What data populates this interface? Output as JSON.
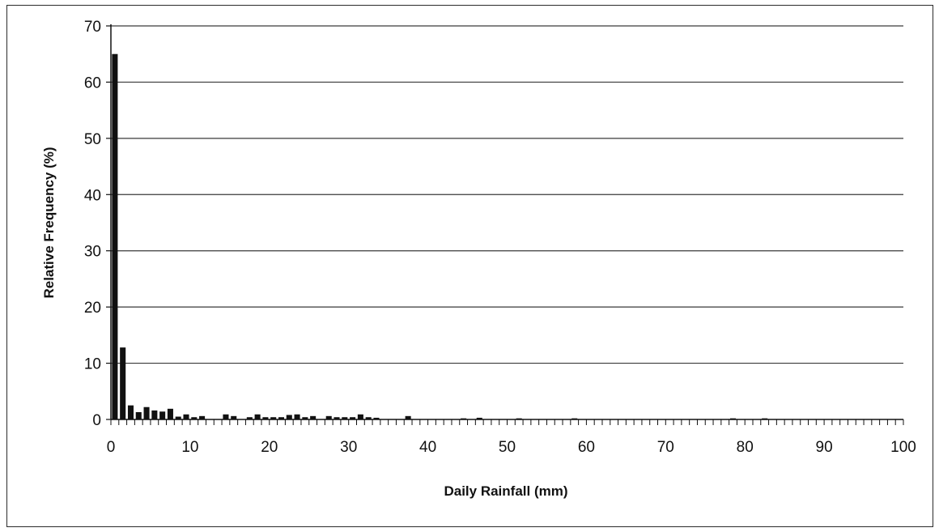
{
  "chart_data": {
    "type": "bar",
    "title": "",
    "xlabel": "Daily Rainfall (mm)",
    "ylabel": "Relative Frequency (%)",
    "xlim": [
      0,
      100
    ],
    "ylim": [
      0,
      70
    ],
    "x_ticks": [
      0,
      10,
      20,
      30,
      40,
      50,
      60,
      70,
      80,
      90,
      100
    ],
    "y_ticks": [
      0,
      10,
      20,
      30,
      40,
      50,
      60,
      70
    ],
    "grid": "horizontal",
    "legend": "none",
    "bar_color": "#111111",
    "x": [
      1,
      2,
      3,
      4,
      5,
      6,
      7,
      8,
      9,
      10,
      11,
      12,
      15,
      16,
      18,
      19,
      20,
      21,
      22,
      23,
      24,
      25,
      26,
      28,
      29,
      30,
      31,
      32,
      33,
      34,
      38,
      45,
      47,
      52,
      59,
      79,
      83
    ],
    "values": [
      65,
      12.8,
      2.5,
      1.3,
      2.2,
      1.6,
      1.4,
      1.9,
      0.5,
      0.9,
      0.4,
      0.6,
      0.9,
      0.6,
      0.4,
      0.9,
      0.4,
      0.4,
      0.4,
      0.8,
      0.9,
      0.4,
      0.6,
      0.6,
      0.4,
      0.4,
      0.4,
      0.9,
      0.4,
      0.3,
      0.6,
      0.2,
      0.3,
      0.2,
      0.2,
      0.2,
      0.2
    ]
  }
}
